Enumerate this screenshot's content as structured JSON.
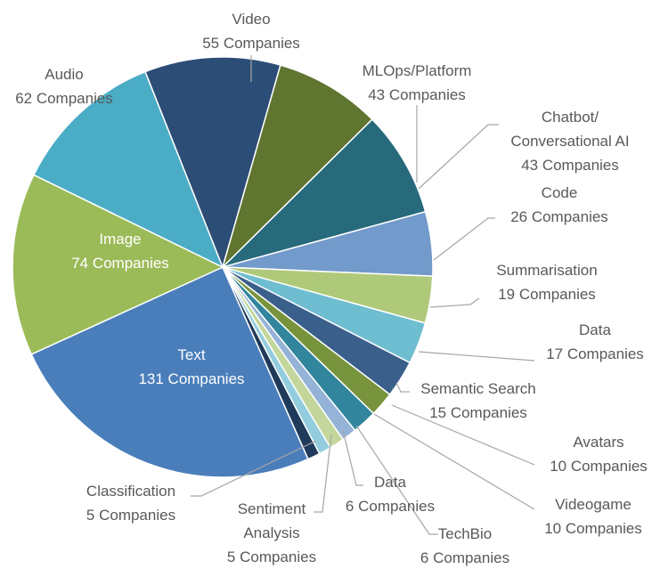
{
  "chart_data": {
    "type": "pie",
    "categories": [
      "Text",
      "Image",
      "Audio",
      "Video",
      "MLOps/Platform",
      "Chatbot/ Conversational AI",
      "Code",
      "Summarisation",
      "Data",
      "Semantic Search",
      "Avatars",
      "Videogame",
      "TechBio",
      "Data",
      "Sentiment Analysis",
      "Classification"
    ],
    "values": [
      131,
      74,
      62,
      55,
      43,
      43,
      26,
      19,
      17,
      15,
      10,
      10,
      6,
      6,
      5,
      5
    ],
    "value_labels": [
      "131 Companies",
      "74 Companies",
      "62 Companies",
      "55 Companies",
      "43 Companies",
      "43 Companies",
      "26 Companies",
      "19 Companies",
      "17 Companies",
      "15 Companies",
      "10 Companies",
      "10 Companies",
      "6 Companies",
      "6 Companies",
      "5 Companies",
      "5 Companies"
    ],
    "colors": [
      "#4a7ebb",
      "#9bbb59",
      "#4bacc6",
      "#2c4d75",
      "#5f7530",
      "#276a7c",
      "#729aca",
      "#afc97a",
      "#6fbdd1",
      "#3a5f8b",
      "#77933c",
      "#31859c",
      "#95b3d7",
      "#c3d69b",
      "#93cddd",
      "#1f3a5a"
    ]
  }
}
